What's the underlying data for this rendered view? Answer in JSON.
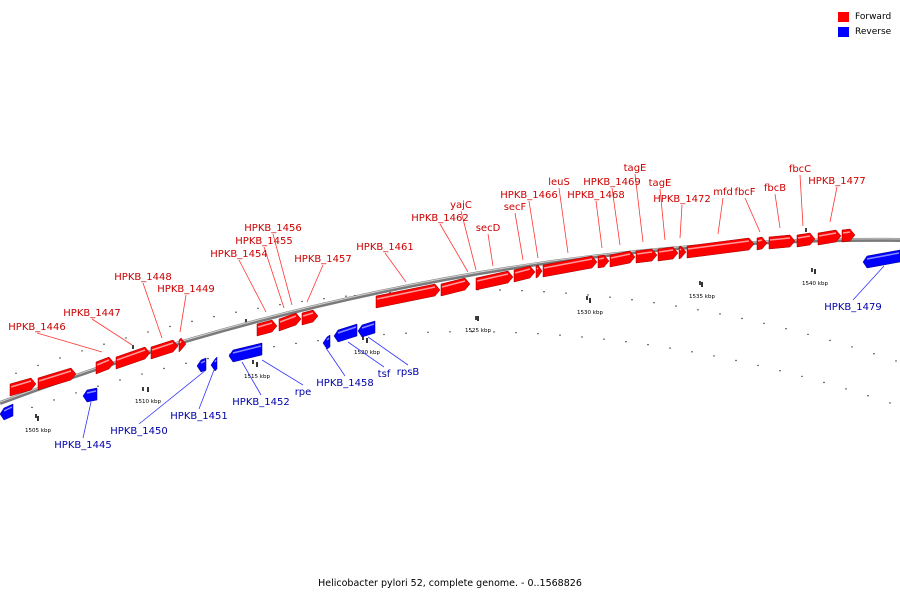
{
  "colors": {
    "forward": "#ff0000",
    "reverse": "#0000ff",
    "forward_label": "#cc0000",
    "reverse_label": "#0000aa",
    "backbone": "#7a7a7a"
  },
  "legend": [
    {
      "label": "Forward",
      "color": "#ff0000"
    },
    {
      "label": "Reverse",
      "color": "#0000ff"
    }
  ],
  "caption": "Helicobacter pylori 52, complete genome. - 0..1568826",
  "scale_labels": [
    "1505 kbp",
    "1510 kbp",
    "1515 kbp",
    "1520 kbp",
    "1525 kbp",
    "1530 kbp",
    "1535 kbp",
    "1540 kbp"
  ],
  "genes_forward": [
    "HPKB_1446",
    "HPKB_1447",
    "HPKB_1448",
    "HPKB_1449",
    "HPKB_1454",
    "HPKB_1455",
    "HPKB_1456",
    "HPKB_1457",
    "HPKB_1461",
    "HPKB_1462",
    "yajC",
    "secD",
    "secF",
    "HPKB_1466",
    "leuS",
    "HPKB_1468",
    "HPKB_1469",
    "tagE",
    "tagE",
    "HPKB_1472",
    "mfd",
    "fbcF",
    "fbcB",
    "fbcC",
    "HPKB_1477"
  ],
  "genes_reverse": [
    "HPKB_1445",
    "HPKB_1450",
    "HPKB_1451",
    "HPKB_1452",
    "rpe",
    "HPKB_1458",
    "tsf",
    "rpsB",
    "HPKB_1479"
  ]
}
